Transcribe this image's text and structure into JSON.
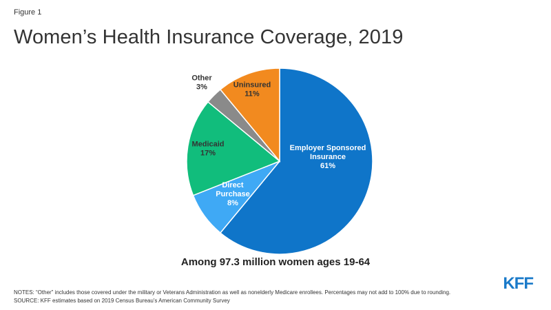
{
  "figure_label": "Figure 1",
  "title": "Women’s Health Insurance Coverage, 2019",
  "subtitle": "Among 97.3 million women ages 19-64",
  "notes": "NOTES: “Other” includes those covered under the military or Veterans Administration as well as nonelderly Medicare enrollees. Percentages may not add to 100% due to rounding.",
  "source": "SOURCE: KFF estimates based on 2019 Census Bureau’s American Community Survey",
  "logo_text": "KFF",
  "chart_data": {
    "type": "pie",
    "title": "Women’s Health Insurance Coverage, 2019",
    "slices": [
      {
        "label_lines": [
          "Employer Sponsored",
          "Insurance"
        ],
        "value_label": "61%",
        "value": 61,
        "color": "#0f75c9",
        "text_color": "#ffffff"
      },
      {
        "label_lines": [
          "Direct",
          "Purchase"
        ],
        "value_label": "8%",
        "value": 8,
        "color": "#3fa9f5",
        "text_color": "#ffffff"
      },
      {
        "label_lines": [
          "Medicaid"
        ],
        "value_label": "17%",
        "value": 17,
        "color": "#11bd7c",
        "text_color": "#333333"
      },
      {
        "label_lines": [
          "Other"
        ],
        "value_label": "3%",
        "value": 3,
        "color": "#8a8a8a",
        "text_color": "#333333"
      },
      {
        "label_lines": [
          "Uninsured"
        ],
        "value_label": "11%",
        "value": 11,
        "color": "#f28a1f",
        "text_color": "#333333"
      }
    ]
  }
}
